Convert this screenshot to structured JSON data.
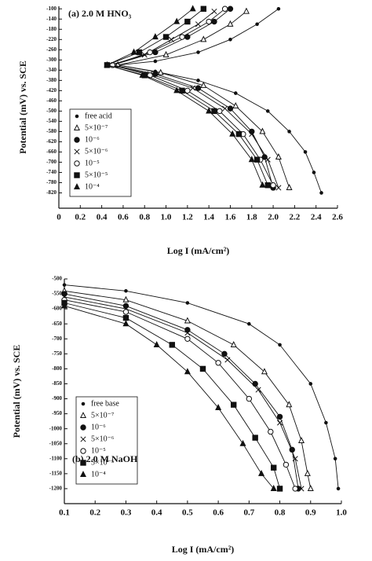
{
  "chart_data": [
    {
      "type": "line",
      "title": "(a) 2.0 M HNO₃",
      "x_label": "Log I (mA/cm²)",
      "y_label": "Potential (mV) vs. SCE",
      "xlim": [
        0,
        2.6
      ],
      "xticks": [
        0,
        0.2,
        0.4,
        0.6,
        0.8,
        {
          "value": 1,
          "label": "1.0"
        },
        1.2,
        1.4,
        1.6,
        1.8,
        {
          "value": 2,
          "label": "2.0"
        },
        2.2,
        2.4,
        2.6
      ],
      "ylim": [
        -880,
        -90
      ],
      "yticks": [
        -100,
        -140,
        -180,
        -220,
        -260,
        -300,
        -340,
        -380,
        -420,
        -460,
        -500,
        -540,
        -580,
        -620,
        -660,
        -700,
        -740,
        -780,
        -820
      ],
      "legend": "left",
      "color": "#111",
      "series": [
        {
          "name": "free acid",
          "marker": "dot",
          "x": [
            2.05,
            1.85,
            1.6,
            1.3,
            0.9,
            0.55,
            0.9,
            1.3,
            1.65,
            1.95,
            2.15,
            2.3,
            2.38,
            2.45
          ],
          "values": [
            -100,
            -160,
            -220,
            -270,
            -305,
            -320,
            -345,
            -380,
            -430,
            -500,
            -580,
            -660,
            -740,
            -820
          ]
        },
        {
          "name": "5×10⁻⁷",
          "marker": "triangle-open",
          "x": [
            1.75,
            1.6,
            1.35,
            1.0,
            0.55,
            0.95,
            1.35,
            1.65,
            1.9,
            2.05,
            2.15
          ],
          "values": [
            -110,
            -160,
            -220,
            -280,
            -320,
            -350,
            -400,
            -480,
            -580,
            -680,
            -800
          ]
        },
        {
          "name": "10⁻⁶",
          "marker": "circle-filled",
          "x": [
            1.6,
            1.45,
            1.2,
            0.9,
            0.5,
            0.9,
            1.3,
            1.6,
            1.8,
            1.92,
            2.0
          ],
          "values": [
            -100,
            -150,
            -210,
            -270,
            -320,
            -355,
            -410,
            -490,
            -580,
            -680,
            -800
          ]
        },
        {
          "name": "5×10⁻⁶",
          "marker": "cross",
          "x": [
            1.45,
            1.3,
            1.05,
            0.8,
            0.48,
            0.85,
            1.25,
            1.55,
            1.8,
            1.95,
            2.05
          ],
          "values": [
            -110,
            -160,
            -220,
            -280,
            -320,
            -355,
            -410,
            -490,
            -590,
            -690,
            -800
          ]
        },
        {
          "name": "10⁻⁵",
          "marker": "circle-open",
          "x": [
            1.55,
            1.4,
            1.15,
            0.85,
            0.5,
            0.85,
            1.2,
            1.5,
            1.72,
            1.88,
            2.0
          ],
          "values": [
            -100,
            -150,
            -210,
            -270,
            -320,
            -360,
            -420,
            -500,
            -590,
            -690,
            -790
          ]
        },
        {
          "name": "5×10⁻⁵",
          "marker": "square-filled",
          "x": [
            1.35,
            1.2,
            1.0,
            0.75,
            0.45,
            0.8,
            1.15,
            1.45,
            1.68,
            1.85,
            1.95
          ],
          "values": [
            -100,
            -150,
            -210,
            -270,
            -320,
            -360,
            -420,
            -500,
            -590,
            -690,
            -790
          ]
        },
        {
          "name": "10⁻⁴",
          "marker": "triangle-filled",
          "x": [
            1.25,
            1.1,
            0.9,
            0.7,
            0.45,
            0.78,
            1.1,
            1.4,
            1.62,
            1.8,
            1.9
          ],
          "values": [
            -100,
            -150,
            -210,
            -270,
            -320,
            -360,
            -420,
            -500,
            -590,
            -690,
            -790
          ]
        }
      ]
    },
    {
      "type": "line",
      "title": "(b) 2.0 M NaOH",
      "x_label": "Log I (mA/cm²)",
      "y_label": "Potential (mV) vs. SCE",
      "xlim": [
        0.1,
        1.0
      ],
      "xticks": [
        0.1,
        0.2,
        0.3,
        0.4,
        0.5,
        0.6,
        0.7,
        0.8,
        0.9,
        {
          "value": 1,
          "label": "1.0"
        }
      ],
      "ylim": [
        -1250,
        -500
      ],
      "yticks": [
        -500,
        -550,
        -600,
        -650,
        -700,
        -750,
        -800,
        -850,
        -900,
        -950,
        -1000,
        -1050,
        -1100,
        -1150,
        -1200
      ],
      "legend": "left",
      "color": "#111",
      "series": [
        {
          "name": "free base",
          "marker": "dot",
          "x": [
            0.1,
            0.3,
            0.5,
            0.7,
            0.8,
            0.9,
            0.95,
            0.98,
            0.99
          ],
          "values": [
            -520,
            -540,
            -580,
            -650,
            -720,
            -850,
            -980,
            -1100,
            -1200
          ]
        },
        {
          "name": "5×10⁻⁷",
          "marker": "triangle-open",
          "x": [
            0.1,
            0.3,
            0.5,
            0.65,
            0.75,
            0.83,
            0.87,
            0.89,
            0.9
          ],
          "values": [
            -540,
            -570,
            -640,
            -720,
            -810,
            -920,
            -1040,
            -1150,
            -1200
          ]
        },
        {
          "name": "10⁻⁶",
          "marker": "circle-filled",
          "x": [
            0.1,
            0.3,
            0.5,
            0.62,
            0.72,
            0.8,
            0.84,
            0.86
          ],
          "values": [
            -550,
            -590,
            -670,
            -750,
            -850,
            -960,
            -1070,
            -1200
          ]
        },
        {
          "name": "5×10⁻⁶",
          "marker": "cross",
          "x": [
            0.1,
            0.3,
            0.5,
            0.63,
            0.73,
            0.8,
            0.85,
            0.87
          ],
          "values": [
            -560,
            -600,
            -680,
            -770,
            -870,
            -980,
            -1100,
            -1200
          ]
        },
        {
          "name": "10⁻⁵",
          "marker": "circle-open",
          "x": [
            0.1,
            0.3,
            0.5,
            0.6,
            0.7,
            0.77,
            0.82,
            0.85
          ],
          "values": [
            -570,
            -610,
            -700,
            -780,
            -900,
            -1010,
            -1120,
            -1200
          ]
        },
        {
          "name": "5×10⁻⁵",
          "marker": "square-filled",
          "x": [
            0.1,
            0.3,
            0.45,
            0.55,
            0.65,
            0.72,
            0.78,
            0.8
          ],
          "values": [
            -580,
            -630,
            -720,
            -800,
            -920,
            -1030,
            -1130,
            -1200
          ]
        },
        {
          "name": "10⁻⁴",
          "marker": "triangle-filled",
          "x": [
            0.1,
            0.3,
            0.4,
            0.5,
            0.6,
            0.68,
            0.74,
            0.78
          ],
          "values": [
            -590,
            -650,
            -720,
            -810,
            -930,
            -1050,
            -1150,
            -1200
          ]
        }
      ]
    }
  ]
}
